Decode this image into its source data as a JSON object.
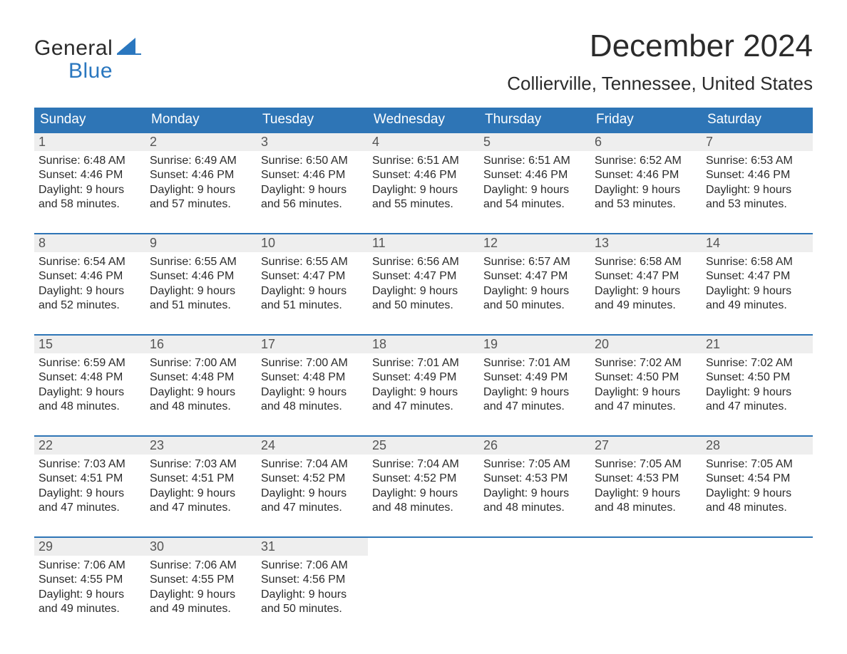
{
  "logo": {
    "word1": "General",
    "word2": "Blue",
    "shape_color": "#2a77bf"
  },
  "title": "December 2024",
  "location": "Collierville, Tennessee, United States",
  "colors": {
    "header_bg": "#2e75b6",
    "header_text": "#ffffff",
    "week_border": "#2e75b6",
    "daynum_bg": "#eeeeee",
    "daynum_text": "#555555",
    "body_text": "#2b2b2b",
    "page_bg": "#ffffff",
    "logo_accent": "#2a77bf"
  },
  "day_headers": [
    "Sunday",
    "Monday",
    "Tuesday",
    "Wednesday",
    "Thursday",
    "Friday",
    "Saturday"
  ],
  "weeks": [
    [
      {
        "n": "1",
        "sr": "Sunrise: 6:48 AM",
        "ss": "Sunset: 4:46 PM",
        "d1": "Daylight: 9 hours",
        "d2": "and 58 minutes."
      },
      {
        "n": "2",
        "sr": "Sunrise: 6:49 AM",
        "ss": "Sunset: 4:46 PM",
        "d1": "Daylight: 9 hours",
        "d2": "and 57 minutes."
      },
      {
        "n": "3",
        "sr": "Sunrise: 6:50 AM",
        "ss": "Sunset: 4:46 PM",
        "d1": "Daylight: 9 hours",
        "d2": "and 56 minutes."
      },
      {
        "n": "4",
        "sr": "Sunrise: 6:51 AM",
        "ss": "Sunset: 4:46 PM",
        "d1": "Daylight: 9 hours",
        "d2": "and 55 minutes."
      },
      {
        "n": "5",
        "sr": "Sunrise: 6:51 AM",
        "ss": "Sunset: 4:46 PM",
        "d1": "Daylight: 9 hours",
        "d2": "and 54 minutes."
      },
      {
        "n": "6",
        "sr": "Sunrise: 6:52 AM",
        "ss": "Sunset: 4:46 PM",
        "d1": "Daylight: 9 hours",
        "d2": "and 53 minutes."
      },
      {
        "n": "7",
        "sr": "Sunrise: 6:53 AM",
        "ss": "Sunset: 4:46 PM",
        "d1": "Daylight: 9 hours",
        "d2": "and 53 minutes."
      }
    ],
    [
      {
        "n": "8",
        "sr": "Sunrise: 6:54 AM",
        "ss": "Sunset: 4:46 PM",
        "d1": "Daylight: 9 hours",
        "d2": "and 52 minutes."
      },
      {
        "n": "9",
        "sr": "Sunrise: 6:55 AM",
        "ss": "Sunset: 4:46 PM",
        "d1": "Daylight: 9 hours",
        "d2": "and 51 minutes."
      },
      {
        "n": "10",
        "sr": "Sunrise: 6:55 AM",
        "ss": "Sunset: 4:47 PM",
        "d1": "Daylight: 9 hours",
        "d2": "and 51 minutes."
      },
      {
        "n": "11",
        "sr": "Sunrise: 6:56 AM",
        "ss": "Sunset: 4:47 PM",
        "d1": "Daylight: 9 hours",
        "d2": "and 50 minutes."
      },
      {
        "n": "12",
        "sr": "Sunrise: 6:57 AM",
        "ss": "Sunset: 4:47 PM",
        "d1": "Daylight: 9 hours",
        "d2": "and 50 minutes."
      },
      {
        "n": "13",
        "sr": "Sunrise: 6:58 AM",
        "ss": "Sunset: 4:47 PM",
        "d1": "Daylight: 9 hours",
        "d2": "and 49 minutes."
      },
      {
        "n": "14",
        "sr": "Sunrise: 6:58 AM",
        "ss": "Sunset: 4:47 PM",
        "d1": "Daylight: 9 hours",
        "d2": "and 49 minutes."
      }
    ],
    [
      {
        "n": "15",
        "sr": "Sunrise: 6:59 AM",
        "ss": "Sunset: 4:48 PM",
        "d1": "Daylight: 9 hours",
        "d2": "and 48 minutes."
      },
      {
        "n": "16",
        "sr": "Sunrise: 7:00 AM",
        "ss": "Sunset: 4:48 PM",
        "d1": "Daylight: 9 hours",
        "d2": "and 48 minutes."
      },
      {
        "n": "17",
        "sr": "Sunrise: 7:00 AM",
        "ss": "Sunset: 4:48 PM",
        "d1": "Daylight: 9 hours",
        "d2": "and 48 minutes."
      },
      {
        "n": "18",
        "sr": "Sunrise: 7:01 AM",
        "ss": "Sunset: 4:49 PM",
        "d1": "Daylight: 9 hours",
        "d2": "and 47 minutes."
      },
      {
        "n": "19",
        "sr": "Sunrise: 7:01 AM",
        "ss": "Sunset: 4:49 PM",
        "d1": "Daylight: 9 hours",
        "d2": "and 47 minutes."
      },
      {
        "n": "20",
        "sr": "Sunrise: 7:02 AM",
        "ss": "Sunset: 4:50 PM",
        "d1": "Daylight: 9 hours",
        "d2": "and 47 minutes."
      },
      {
        "n": "21",
        "sr": "Sunrise: 7:02 AM",
        "ss": "Sunset: 4:50 PM",
        "d1": "Daylight: 9 hours",
        "d2": "and 47 minutes."
      }
    ],
    [
      {
        "n": "22",
        "sr": "Sunrise: 7:03 AM",
        "ss": "Sunset: 4:51 PM",
        "d1": "Daylight: 9 hours",
        "d2": "and 47 minutes."
      },
      {
        "n": "23",
        "sr": "Sunrise: 7:03 AM",
        "ss": "Sunset: 4:51 PM",
        "d1": "Daylight: 9 hours",
        "d2": "and 47 minutes."
      },
      {
        "n": "24",
        "sr": "Sunrise: 7:04 AM",
        "ss": "Sunset: 4:52 PM",
        "d1": "Daylight: 9 hours",
        "d2": "and 47 minutes."
      },
      {
        "n": "25",
        "sr": "Sunrise: 7:04 AM",
        "ss": "Sunset: 4:52 PM",
        "d1": "Daylight: 9 hours",
        "d2": "and 48 minutes."
      },
      {
        "n": "26",
        "sr": "Sunrise: 7:05 AM",
        "ss": "Sunset: 4:53 PM",
        "d1": "Daylight: 9 hours",
        "d2": "and 48 minutes."
      },
      {
        "n": "27",
        "sr": "Sunrise: 7:05 AM",
        "ss": "Sunset: 4:53 PM",
        "d1": "Daylight: 9 hours",
        "d2": "and 48 minutes."
      },
      {
        "n": "28",
        "sr": "Sunrise: 7:05 AM",
        "ss": "Sunset: 4:54 PM",
        "d1": "Daylight: 9 hours",
        "d2": "and 48 minutes."
      }
    ],
    [
      {
        "n": "29",
        "sr": "Sunrise: 7:06 AM",
        "ss": "Sunset: 4:55 PM",
        "d1": "Daylight: 9 hours",
        "d2": "and 49 minutes."
      },
      {
        "n": "30",
        "sr": "Sunrise: 7:06 AM",
        "ss": "Sunset: 4:55 PM",
        "d1": "Daylight: 9 hours",
        "d2": "and 49 minutes."
      },
      {
        "n": "31",
        "sr": "Sunrise: 7:06 AM",
        "ss": "Sunset: 4:56 PM",
        "d1": "Daylight: 9 hours",
        "d2": "and 50 minutes."
      },
      null,
      null,
      null,
      null
    ]
  ]
}
